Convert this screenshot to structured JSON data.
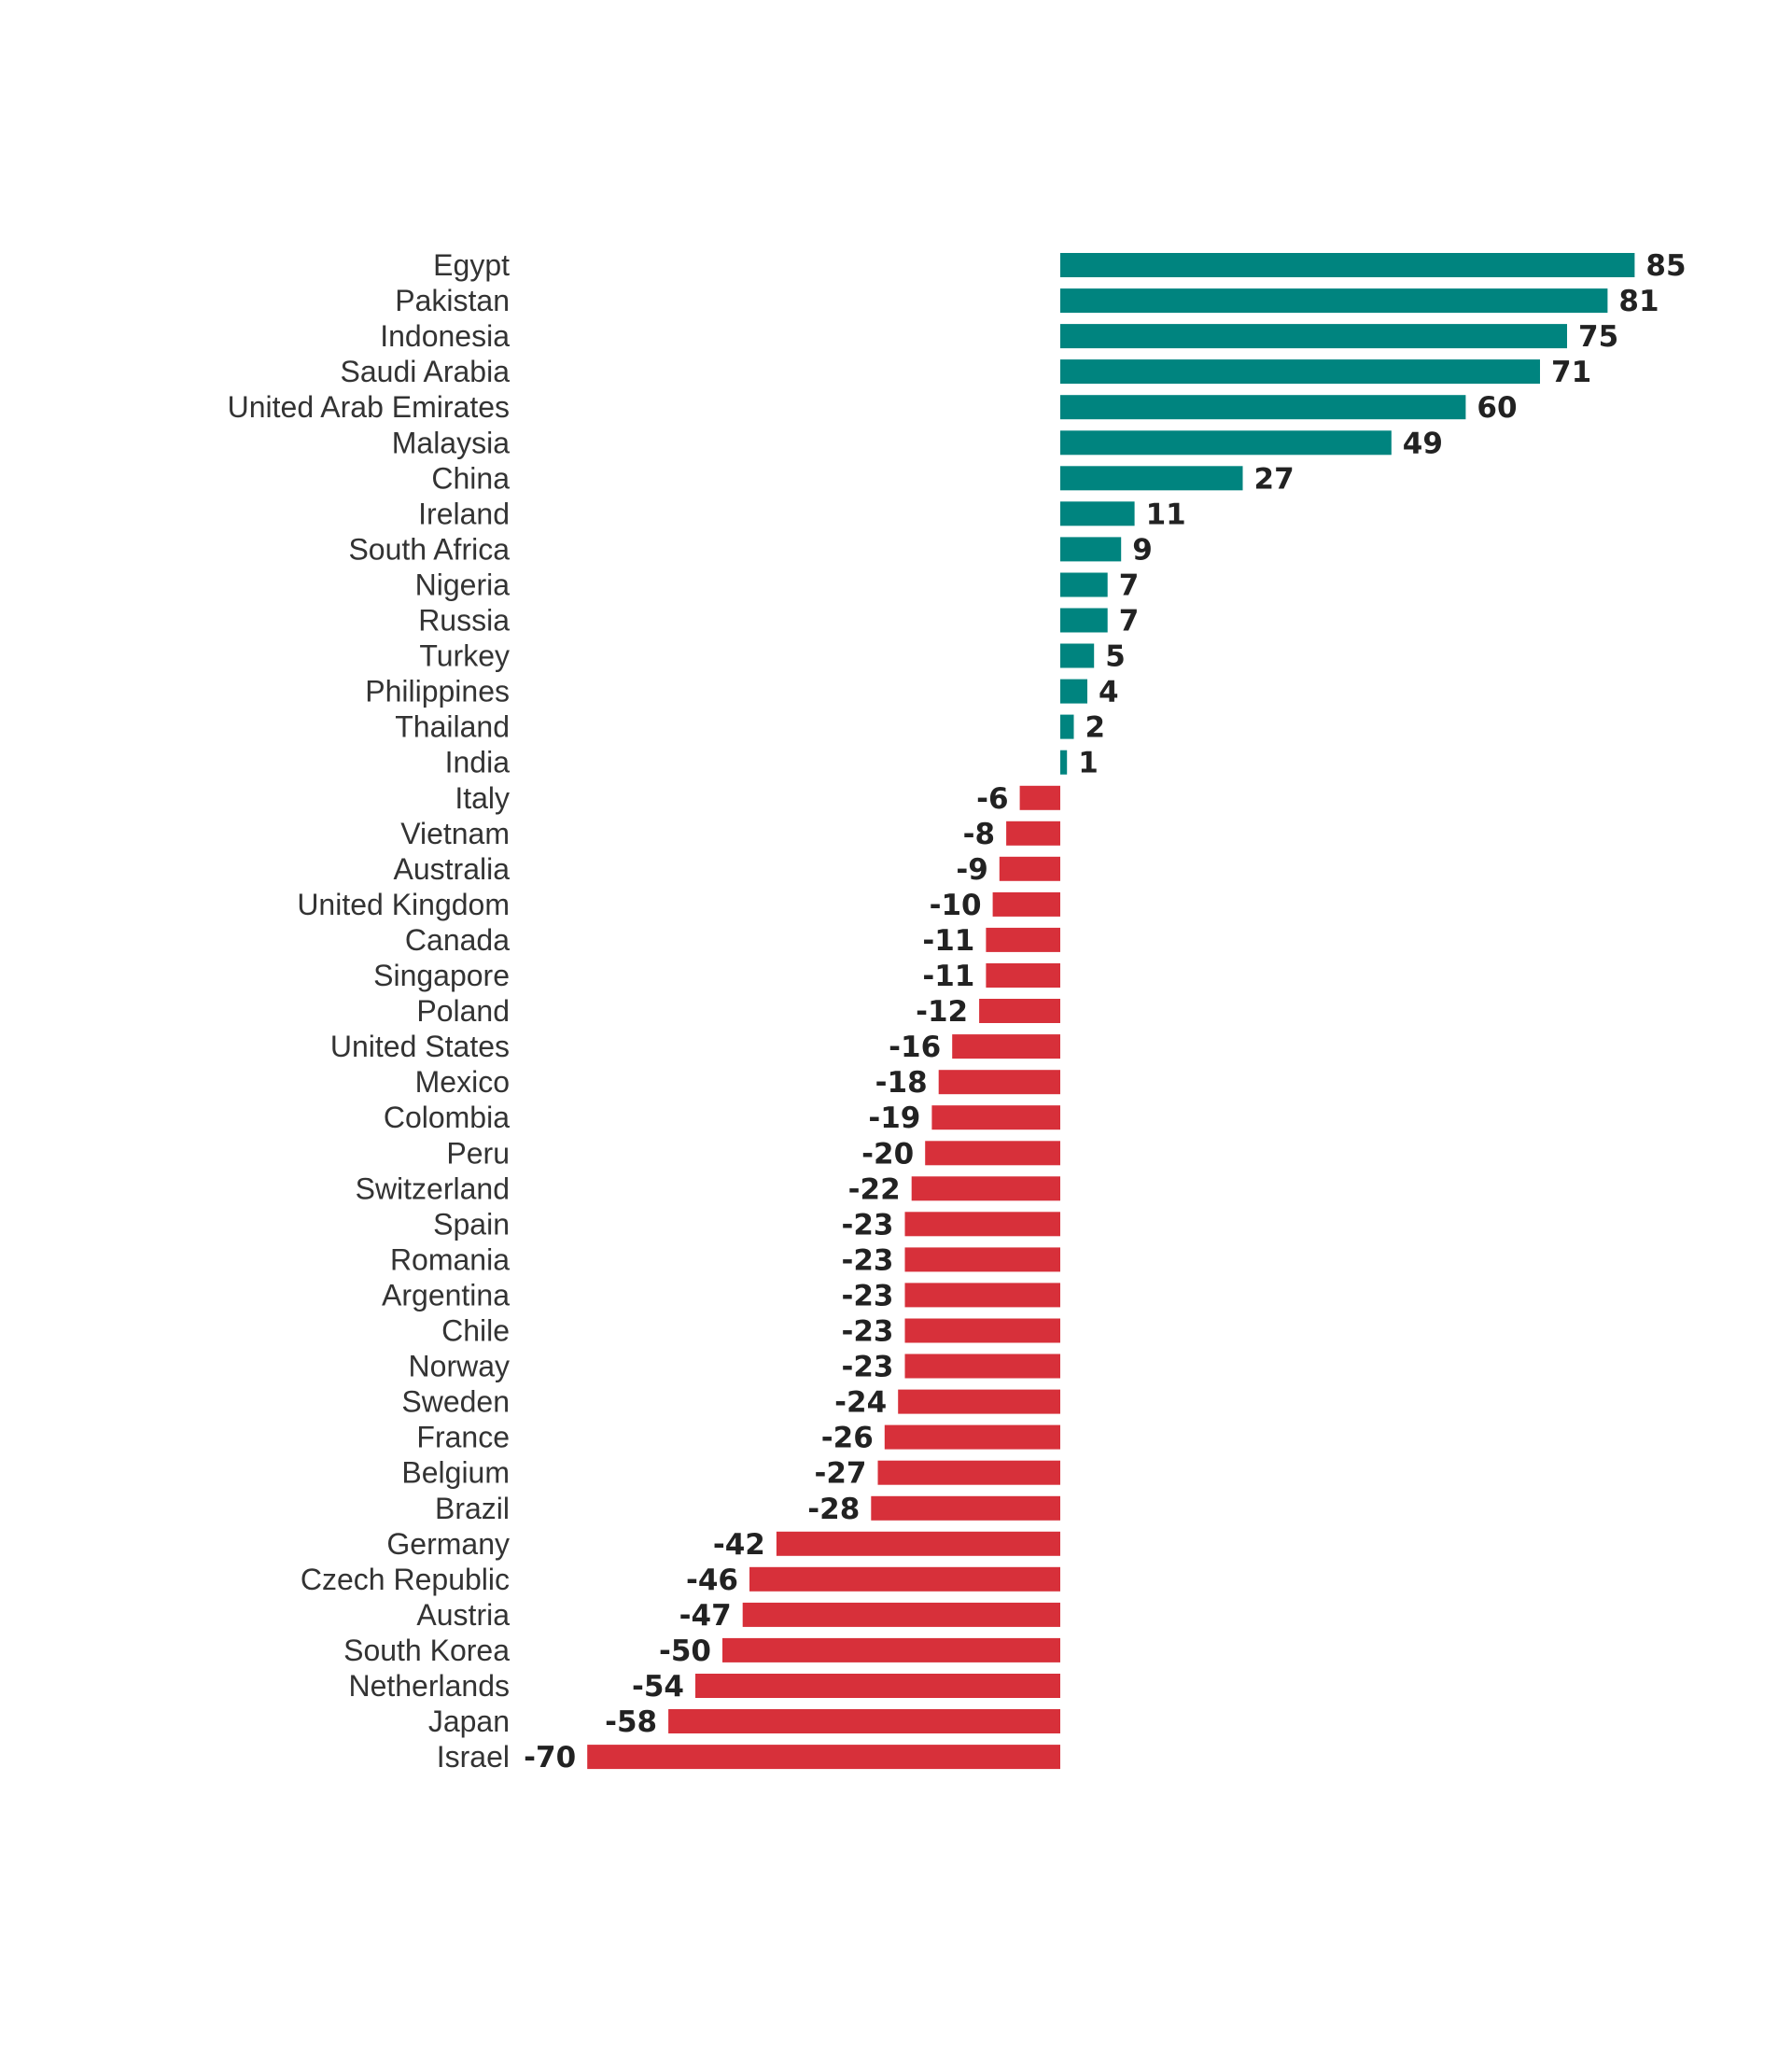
{
  "colors": {
    "positive": "#00847f",
    "negative": "#d7303a",
    "category_text": "#333333",
    "value_text": "#222222",
    "background": "#ffffff"
  },
  "chart_data": {
    "type": "bar",
    "orientation": "horizontal",
    "title": "",
    "xlabel": "",
    "ylabel": "",
    "grid": false,
    "legend": "none",
    "xlim": [
      -70,
      85
    ],
    "categories": [
      "Egypt",
      "Pakistan",
      "Indonesia",
      "Saudi Arabia",
      "United Arab Emirates",
      "Malaysia",
      "China",
      "Ireland",
      "South Africa",
      "Nigeria",
      "Russia",
      "Turkey",
      "Philippines",
      "Thailand",
      "India",
      "Italy",
      "Vietnam",
      "Australia",
      "United Kingdom",
      "Canada",
      "Singapore",
      "Poland",
      "United States",
      "Mexico",
      "Colombia",
      "Peru",
      "Switzerland",
      "Spain",
      "Romania",
      "Argentina",
      "Chile",
      "Norway",
      "Sweden",
      "France",
      "Belgium",
      "Brazil",
      "Germany",
      "Czech Republic",
      "Austria",
      "South Korea",
      "Netherlands",
      "Japan",
      "Israel"
    ],
    "values": [
      85,
      81,
      75,
      71,
      60,
      49,
      27,
      11,
      9,
      7,
      7,
      5,
      4,
      2,
      1,
      -6,
      -8,
      -9,
      -10,
      -11,
      -11,
      -12,
      -16,
      -18,
      -19,
      -20,
      -22,
      -23,
      -23,
      -23,
      -23,
      -23,
      -24,
      -26,
      -27,
      -28,
      -42,
      -46,
      -47,
      -50,
      -54,
      -58,
      -70
    ]
  }
}
